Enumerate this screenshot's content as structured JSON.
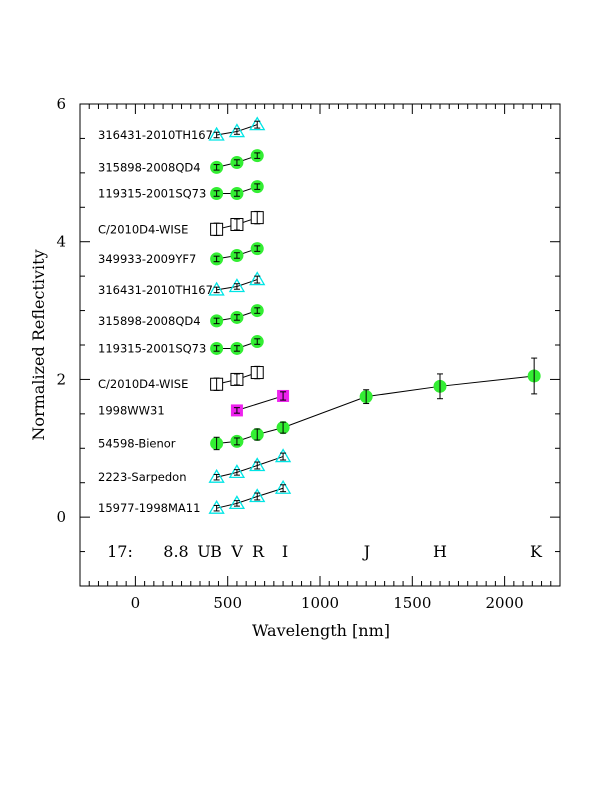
{
  "chart_data": {
    "type": "scatter",
    "xlabel": "Wavelength [nm]",
    "ylabel": "Normalized Reflectivity",
    "xlim": [
      -300,
      2300
    ],
    "ylim": [
      -1,
      6
    ],
    "xticks": [
      0,
      500,
      1000,
      1500,
      2000
    ],
    "yticks": [
      0,
      2,
      4,
      6
    ],
    "band_annotation": [
      "17:",
      "8.8",
      "U",
      "B",
      "V",
      "R",
      "I",
      "J",
      "H",
      "K"
    ],
    "colors": {
      "circle": "#33ee33",
      "triangle": "#00e5e5",
      "square_filled": "#ee22ee",
      "square_open": "#000000"
    },
    "series": [
      {
        "name": "316431-2010TH167",
        "marker": "triangle",
        "x": [
          440,
          550,
          660
        ],
        "y": [
          5.55,
          5.6,
          5.7
        ],
        "err": [
          0.04,
          0.04,
          0.05
        ]
      },
      {
        "name": "315898-2008QD4",
        "marker": "circle",
        "x": [
          440,
          550,
          660
        ],
        "y": [
          5.08,
          5.15,
          5.25
        ],
        "err": [
          0.04,
          0.04,
          0.04
        ]
      },
      {
        "name": "119315-2001SQ73",
        "marker": "circle",
        "x": [
          440,
          550,
          660
        ],
        "y": [
          4.7,
          4.7,
          4.8
        ],
        "err": [
          0.04,
          0.04,
          0.04
        ]
      },
      {
        "name": "C/2010D4-WISE",
        "marker": "square_open",
        "x": [
          440,
          550,
          660
        ],
        "y": [
          4.18,
          4.25,
          4.35
        ],
        "err": [
          0.09,
          0.08,
          0.09
        ]
      },
      {
        "name": "349933-2009YF7",
        "marker": "circle",
        "x": [
          440,
          550,
          660
        ],
        "y": [
          3.75,
          3.8,
          3.9
        ],
        "err": [
          0.04,
          0.04,
          0.04
        ]
      },
      {
        "name": "316431-2010TH167",
        "marker": "triangle",
        "x": [
          440,
          550,
          660
        ],
        "y": [
          3.3,
          3.35,
          3.45
        ],
        "err": [
          0.04,
          0.04,
          0.05
        ]
      },
      {
        "name": "315898-2008QD4",
        "marker": "circle",
        "x": [
          440,
          550,
          660
        ],
        "y": [
          2.85,
          2.9,
          3.0
        ],
        "err": [
          0.04,
          0.04,
          0.04
        ]
      },
      {
        "name": "119315-2001SQ73",
        "marker": "circle",
        "x": [
          440,
          550,
          660
        ],
        "y": [
          2.45,
          2.45,
          2.55
        ],
        "err": [
          0.04,
          0.04,
          0.04
        ]
      },
      {
        "name": "C/2010D4-WISE",
        "marker": "square_open",
        "x": [
          440,
          550,
          660
        ],
        "y": [
          1.93,
          2.0,
          2.1
        ],
        "err": [
          0.09,
          0.08,
          0.09
        ]
      },
      {
        "name": "1998WW31",
        "marker": "square_filled",
        "x": [
          550,
          800
        ],
        "y": [
          1.55,
          1.76
        ],
        "err": [
          0.04,
          0.06
        ]
      },
      {
        "name": "54598-Bienor",
        "marker": "circle",
        "x": [
          440,
          550,
          660,
          800,
          1250,
          1650,
          2160
        ],
        "y": [
          1.07,
          1.1,
          1.2,
          1.3,
          1.75,
          1.9,
          2.05
        ],
        "err": [
          0.09,
          0.05,
          0.08,
          0.08,
          0.1,
          0.18,
          0.26
        ]
      },
      {
        "name": "2223-Sarpedon",
        "marker": "triangle",
        "x": [
          440,
          550,
          660,
          800
        ],
        "y": [
          0.58,
          0.65,
          0.75,
          0.88
        ],
        "err": [
          0.04,
          0.04,
          0.05,
          0.05
        ]
      },
      {
        "name": "15977-1998MA11",
        "marker": "triangle",
        "x": [
          440,
          550,
          660,
          800
        ],
        "y": [
          0.13,
          0.2,
          0.3,
          0.42
        ],
        "err": [
          0.04,
          0.04,
          0.05,
          0.05
        ]
      }
    ]
  }
}
